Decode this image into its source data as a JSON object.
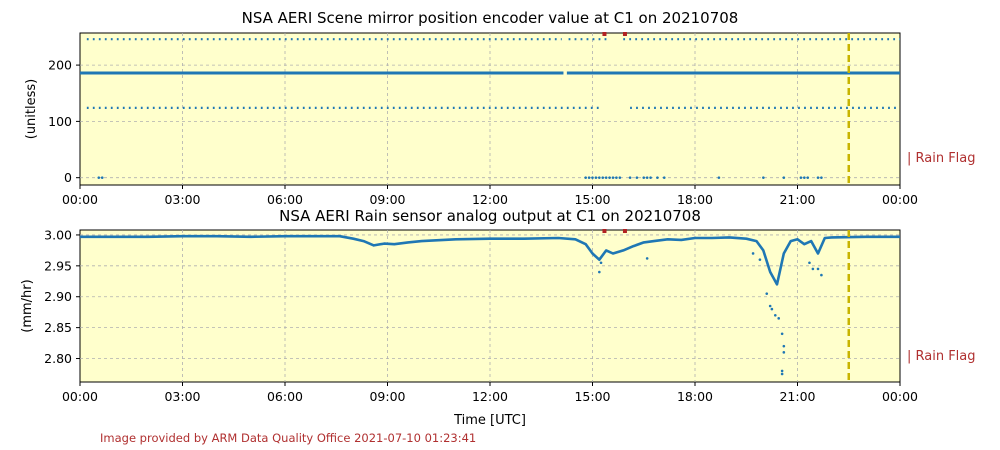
{
  "credit": "Image provided by ARM Data Quality Office 2021-07-10 01:23:41",
  "colors": {
    "background": "#ffffcc",
    "data": "#1f77b4",
    "flag": "#b22222",
    "vline": "#c8b400",
    "grid": "#b0b0b0"
  },
  "chart_data": [
    {
      "type": "scatter",
      "title": "NSA AERI Scene mirror position encoder value at C1 on 20210708",
      "xlabel": "",
      "ylabel": "(unitless)",
      "xlim": [
        0,
        24
      ],
      "ylim": [
        -13,
        257
      ],
      "x_ticks": [
        "00:00",
        "03:00",
        "06:00",
        "09:00",
        "12:00",
        "15:00",
        "18:00",
        "21:00",
        "00:00"
      ],
      "y_ticks": [
        0,
        100,
        200
      ],
      "grid": true,
      "rain_flag_label": "| Rain Flag",
      "rain_flag_times": [
        15.35,
        15.95
      ],
      "vertical_line_time": 22.5,
      "series": [
        {
          "kind": "dotted_band",
          "y": 246,
          "segments": [
            [
              0.2,
              14.1
            ],
            [
              14.3,
              15.5
            ],
            [
              15.9,
              24
            ]
          ]
        },
        {
          "kind": "solid_line",
          "y": 186,
          "segments": [
            [
              0,
              14.15
            ],
            [
              14.25,
              24
            ]
          ]
        },
        {
          "kind": "dotted_band",
          "y": 124,
          "segments": [
            [
              0.2,
              15.2
            ],
            [
              16.1,
              24
            ]
          ]
        },
        {
          "kind": "points",
          "y": 0,
          "x": [
            0.55,
            0.65,
            14.8,
            14.9,
            15.0,
            15.1,
            15.2,
            15.3,
            15.4,
            15.5,
            15.6,
            15.7,
            15.8,
            16.1,
            16.3,
            16.5,
            16.6,
            16.7,
            16.9,
            17.1,
            18.7,
            20.0,
            20.6,
            21.1,
            21.2,
            21.3,
            21.6,
            21.7
          ]
        }
      ]
    },
    {
      "type": "scatter",
      "title": "NSA AERI Rain sensor analog output at C1 on 20210708",
      "xlabel": "Time [UTC]",
      "ylabel": "(mm/hr)",
      "xlim": [
        0,
        24
      ],
      "ylim": [
        2.762,
        3.008
      ],
      "x_ticks": [
        "00:00",
        "03:00",
        "06:00",
        "09:00",
        "12:00",
        "15:00",
        "18:00",
        "21:00",
        "00:00"
      ],
      "y_ticks": [
        "2.80",
        "2.85",
        "2.90",
        "2.95",
        "3.00"
      ],
      "grid": true,
      "rain_flag_label": "| Rain Flag",
      "rain_flag_times": [
        15.35,
        15.95
      ],
      "vertical_line_time": 22.5,
      "series": [
        {
          "kind": "trace",
          "points": [
            [
              0,
              2.997
            ],
            [
              1,
              2.997
            ],
            [
              2,
              2.997
            ],
            [
              3,
              2.998
            ],
            [
              4,
              2.998
            ],
            [
              5,
              2.997
            ],
            [
              6,
              2.998
            ],
            [
              7,
              2.998
            ],
            [
              7.6,
              2.998
            ],
            [
              8.0,
              2.994
            ],
            [
              8.3,
              2.99
            ],
            [
              8.6,
              2.983
            ],
            [
              8.9,
              2.986
            ],
            [
              9.2,
              2.985
            ],
            [
              9.6,
              2.988
            ],
            [
              10,
              2.99
            ],
            [
              11,
              2.993
            ],
            [
              12,
              2.994
            ],
            [
              13,
              2.994
            ],
            [
              14,
              2.995
            ],
            [
              14.5,
              2.993
            ],
            [
              14.8,
              2.985
            ],
            [
              15.0,
              2.97
            ],
            [
              15.2,
              2.96
            ],
            [
              15.4,
              2.975
            ],
            [
              15.6,
              2.97
            ],
            [
              15.9,
              2.975
            ],
            [
              16.2,
              2.982
            ],
            [
              16.5,
              2.988
            ],
            [
              16.8,
              2.99
            ],
            [
              17.2,
              2.993
            ],
            [
              17.6,
              2.992
            ],
            [
              18,
              2.995
            ],
            [
              18.5,
              2.995
            ],
            [
              19,
              2.996
            ],
            [
              19.5,
              2.994
            ],
            [
              19.8,
              2.99
            ],
            [
              20,
              2.975
            ],
            [
              20.2,
              2.94
            ],
            [
              20.4,
              2.92
            ],
            [
              20.6,
              2.97
            ],
            [
              20.8,
              2.99
            ],
            [
              21.0,
              2.993
            ],
            [
              21.2,
              2.985
            ],
            [
              21.4,
              2.99
            ],
            [
              21.6,
              2.97
            ],
            [
              21.8,
              2.995
            ],
            [
              22,
              2.996
            ],
            [
              23,
              2.997
            ],
            [
              24,
              2.997
            ]
          ]
        },
        {
          "kind": "outliers",
          "points": [
            [
              15.2,
              2.94
            ],
            [
              15.25,
              2.955
            ],
            [
              16.6,
              2.962
            ],
            [
              19.7,
              2.97
            ],
            [
              19.9,
              2.96
            ],
            [
              20.1,
              2.905
            ],
            [
              20.2,
              2.885
            ],
            [
              20.25,
              2.88
            ],
            [
              20.35,
              2.87
            ],
            [
              20.45,
              2.865
            ],
            [
              20.55,
              2.84
            ],
            [
              20.6,
              2.82
            ],
            [
              20.6,
              2.81
            ],
            [
              20.55,
              2.78
            ],
            [
              20.55,
              2.775
            ],
            [
              21.35,
              2.955
            ],
            [
              21.45,
              2.945
            ],
            [
              21.6,
              2.945
            ],
            [
              21.7,
              2.935
            ]
          ]
        }
      ]
    }
  ]
}
